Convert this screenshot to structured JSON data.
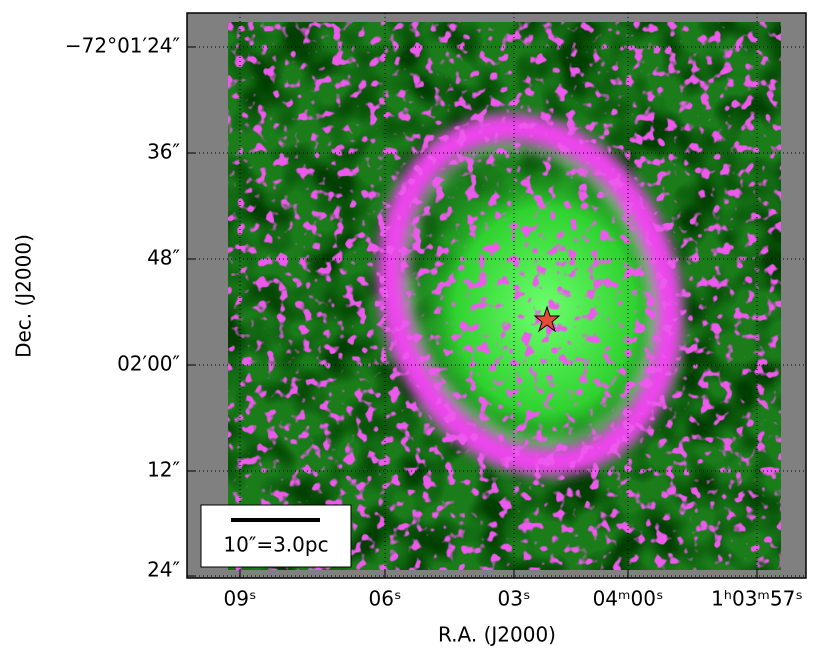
{
  "axes": {
    "x_label": "R.A. (J2000)",
    "y_label": "Dec. (J2000)",
    "x_ticks": [
      "09ˢ",
      "06ˢ",
      "03ˢ",
      "04ᵐ00ˢ",
      "1ʰ03ᵐ57ˢ"
    ],
    "y_ticks": [
      "−72°01′24″",
      "36″",
      "48″",
      "02′00″",
      "12″",
      "24″"
    ]
  },
  "scale_bar": {
    "label": "10″=3.0pc"
  }
}
